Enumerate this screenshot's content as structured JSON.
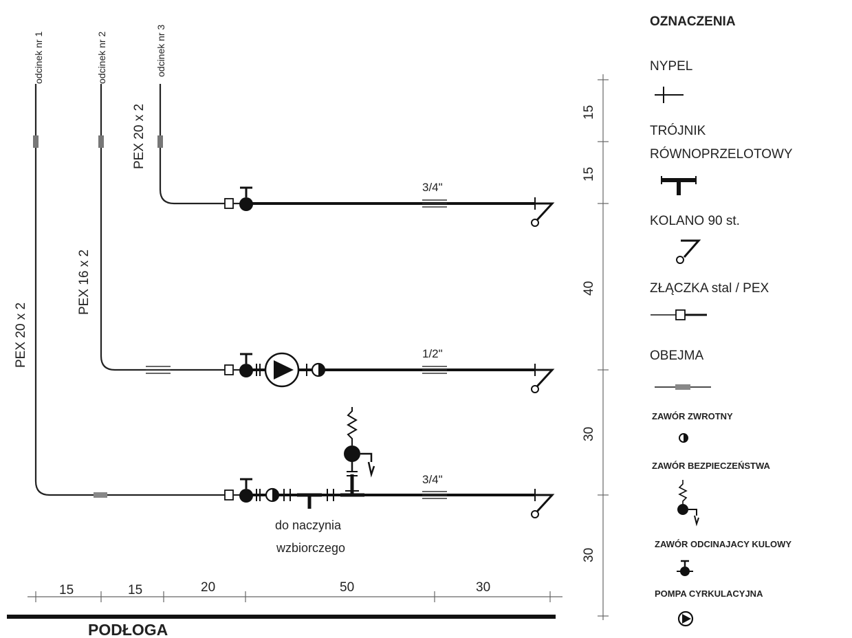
{
  "segments": [
    {
      "label": "odcinek nr 1",
      "pipe": "PEX 20 x 2",
      "size": "3/4\""
    },
    {
      "label": "odcinek nr 2",
      "pipe": "PEX 16 x 2",
      "size": "1/2\""
    },
    {
      "label": "odcinek nr 3",
      "pipe": "PEX 20 x 2",
      "size": "3/4\""
    }
  ],
  "vessel_note": [
    "do naczynia",
    "wzbiorczego"
  ],
  "floor_label": "PODŁOGA",
  "bottom_dimensions": [
    "15",
    "15",
    "20",
    "50",
    "30"
  ],
  "side_dimensions": [
    "15",
    "15",
    "40",
    "30",
    "30"
  ],
  "legend": {
    "title": "OZNACZENIA",
    "items": [
      {
        "label": "NYPEL",
        "icon": "nipple-icon"
      },
      {
        "label_lines": [
          "TRÓJNIK",
          "RÓWNOPRZELOTOWY"
        ],
        "icon": "tee-icon"
      },
      {
        "label": "KOLANO 90 st.",
        "icon": "elbow-icon"
      },
      {
        "label": "ZŁĄCZKA stal / PEX",
        "icon": "coupling-icon"
      },
      {
        "label": "OBEJMA",
        "icon": "clamp-icon"
      },
      {
        "label": "ZAWÓR ZWROTNY",
        "icon": "check-valve-icon"
      },
      {
        "label": "ZAWÓR BEZPIECZEŃSTWA",
        "icon": "safety-valve-icon"
      },
      {
        "label": "ZAWÓR ODCINAJACY KULOWY",
        "icon": "ball-valve-icon"
      },
      {
        "label": "POMPA CYRKULACYJNA",
        "icon": "pump-icon"
      }
    ]
  }
}
